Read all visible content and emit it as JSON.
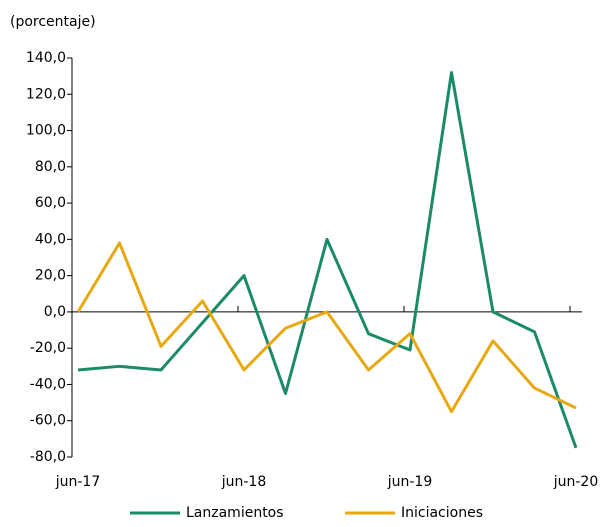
{
  "chart_data": {
    "type": "line",
    "y_axis_label": "(porcentaje)",
    "categories": [
      "jun-17",
      null,
      null,
      null,
      "jun-18",
      null,
      null,
      null,
      "jun-19",
      null,
      null,
      null,
      "jun-20"
    ],
    "series": [
      {
        "name": "Lanzamientos",
        "color": "#1b8a68",
        "values": [
          -32,
          -30,
          -32,
          -6,
          20,
          -45,
          40,
          -12,
          -21,
          132,
          0,
          -11,
          -75
        ]
      },
      {
        "name": "Iniciaciones",
        "color": "#e8a812",
        "values": [
          0,
          38,
          -19,
          6,
          -32,
          -9,
          0,
          -32,
          -12,
          -55,
          -16,
          -42,
          -53
        ]
      }
    ],
    "ylim": [
      -80,
      140
    ],
    "yticks": [
      {
        "value": -80,
        "label": "-80,0"
      },
      {
        "value": -60,
        "label": "-60,0"
      },
      {
        "value": -40,
        "label": "-40,0"
      },
      {
        "value": -20,
        "label": "-20,0"
      },
      {
        "value": 0,
        "label": "0,0"
      },
      {
        "value": 20,
        "label": "20,0"
      },
      {
        "value": 40,
        "label": "40,0"
      },
      {
        "value": 60,
        "label": "60,0"
      },
      {
        "value": 80,
        "label": "80,0"
      },
      {
        "value": 100,
        "label": "100,0"
      },
      {
        "value": 120,
        "label": "120,0"
      },
      {
        "value": 140,
        "label": "140,0"
      }
    ],
    "legend": "bottom"
  }
}
